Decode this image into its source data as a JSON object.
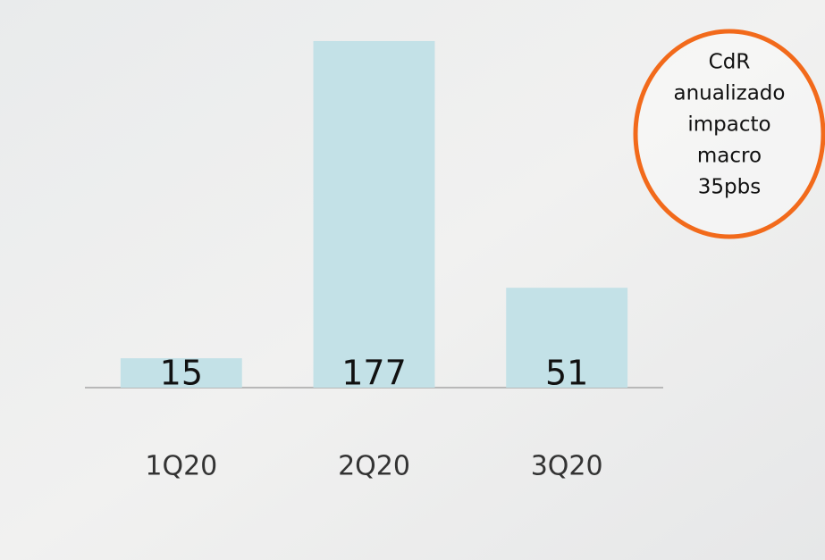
{
  "chart_data": {
    "type": "bar",
    "categories": [
      "1Q20",
      "2Q20",
      "3Q20"
    ],
    "values": [
      15,
      177,
      51
    ],
    "color": "#c3e1e7",
    "ylim": [
      0,
      180
    ],
    "annotation": {
      "lines": [
        "CdR",
        "anualizado",
        "impacto",
        "macro",
        "35pbs"
      ],
      "color": "#f26a1b"
    }
  }
}
